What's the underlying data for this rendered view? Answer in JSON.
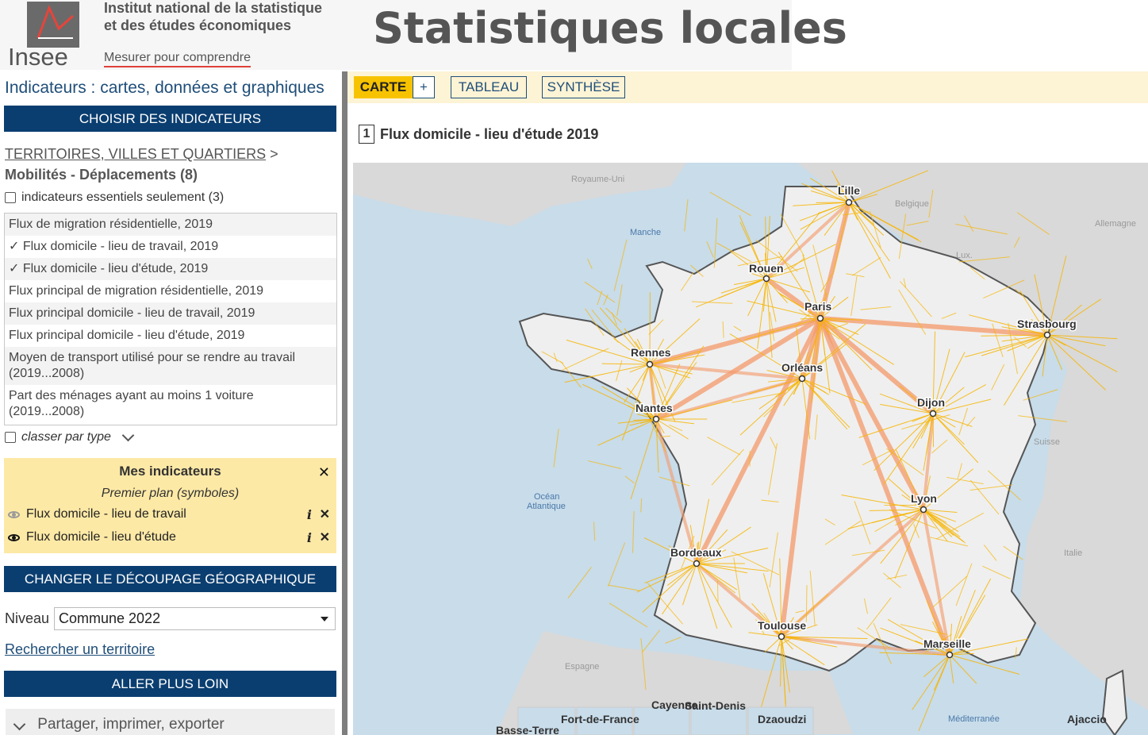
{
  "header": {
    "logo_text": "Insee",
    "institute_line1": "Institut national de la statistique",
    "institute_line2": "et des études économiques",
    "tagline": "Mesurer pour comprendre",
    "site_title": "Statistiques locales"
  },
  "sidebar": {
    "heading": "Indicateurs : cartes, données et graphiques",
    "choose_button": "CHOISIR DES INDICATEURS",
    "breadcrumb_link": "TERRITOIRES, VILLES ET QUARTIERS",
    "breadcrumb_sep": " > ",
    "breadcrumb_current": "Mobilités - Déplacements (8)",
    "essential_only": "indicateurs essentiels seulement (3)",
    "indicators": [
      "Flux de migration résidentielle, 2019",
      "✓ Flux domicile - lieu de travail, 2019",
      "✓ Flux domicile - lieu d'étude, 2019",
      "Flux principal de migration résidentielle, 2019",
      "Flux principal domicile - lieu de travail, 2019",
      "Flux principal domicile - lieu d'étude, 2019",
      "Moyen de transport utilisé pour se rendre au travail (2019...2008)",
      "Part des ménages ayant au moins 1 voiture (2019...2008)"
    ],
    "sort_by_type": "classer par type",
    "my_indicators": {
      "title": "Mes indicateurs",
      "close": "✕",
      "subtitle": "Premier plan (symboles)",
      "items": [
        "Flux domicile - lieu de travail",
        "Flux domicile - lieu d'étude"
      ],
      "info": "i",
      "remove": "✕"
    },
    "geo_button": "CHANGER LE DÉCOUPAGE GÉOGRAPHIQUE",
    "level_label": "Niveau",
    "level_value": "Commune 2022",
    "search_link": "Rechercher un territoire",
    "further_button": "ALLER PLUS LOIN",
    "share": "Partager, imprimer, exporter"
  },
  "tabs": {
    "carte": "CARTE",
    "plus": "+",
    "tableau": "TABLEAU",
    "synthese": "SYNTHÈSE"
  },
  "map": {
    "number": "1",
    "title": "Flux domicile - lieu d'étude 2019",
    "cities": [
      "Lille",
      "Rouen",
      "Paris",
      "Strasbourg",
      "Rennes",
      "Orléans",
      "Dijon",
      "Nantes",
      "Lyon",
      "Bordeaux",
      "Toulouse",
      "Marseille"
    ],
    "seas": [
      "Manche",
      "Océan",
      "Atlantique",
      "Méditerranée"
    ],
    "countries": [
      "Royaume-Uni",
      "Belgique",
      "Allemagne",
      "Lux.",
      "Suisse",
      "Italie",
      "Espagne"
    ],
    "overseas": [
      "Cayenne",
      "Saint-Denis",
      "Basse-Terre",
      "Fort-de-France",
      "Dzaoudzi",
      "Ajaccio"
    ],
    "colors": {
      "sea": "#c8dcea",
      "land": "#efefef",
      "flow": "#f7b500",
      "flow_major": "#f59a6a"
    }
  }
}
